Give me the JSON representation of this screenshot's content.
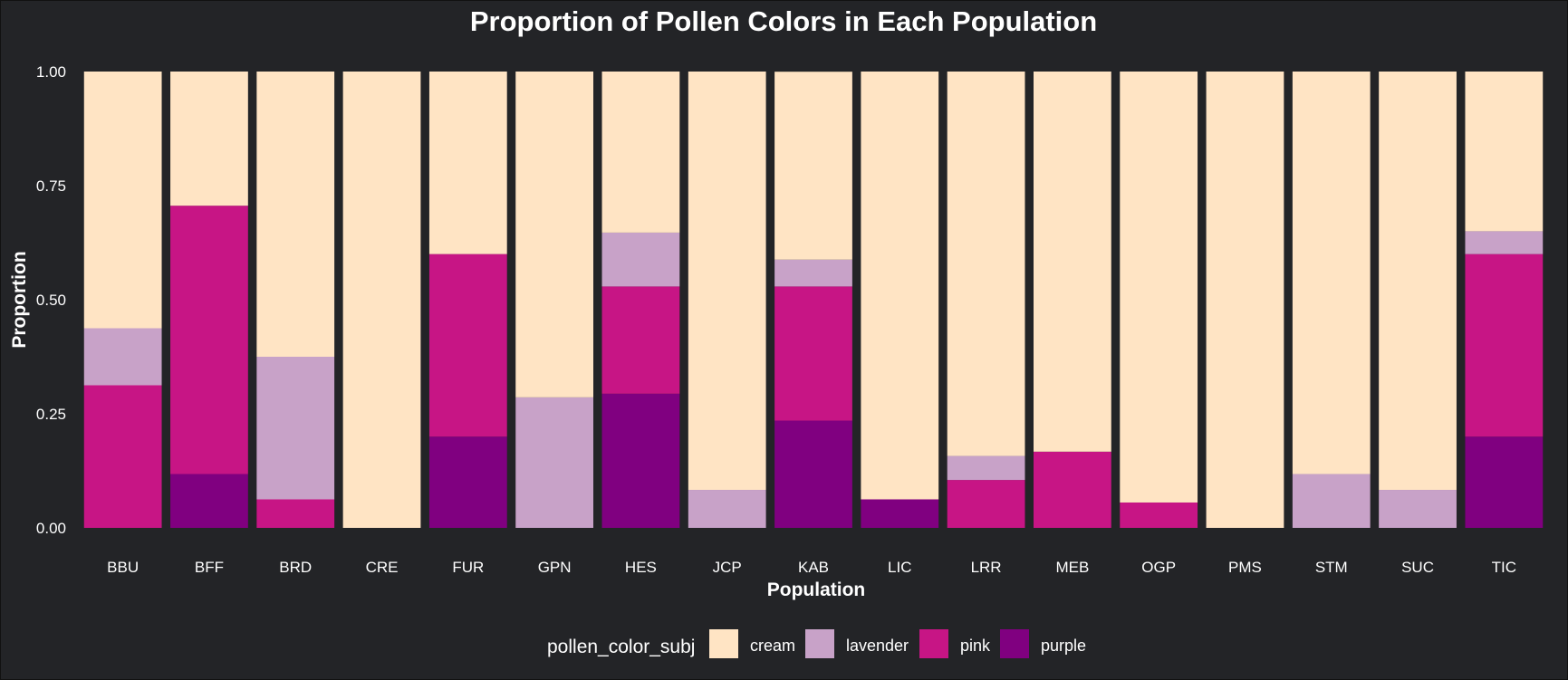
{
  "chart_data": {
    "type": "bar",
    "stacked": true,
    "title": "Proportion of Pollen Colors in Each Population",
    "xlabel": "Population",
    "ylabel": "Proportion",
    "ylim": [
      0,
      1
    ],
    "yticks": [
      "0.00",
      "0.25",
      "0.50",
      "0.75",
      "1.00"
    ],
    "grid": false,
    "legend_position": "bottom",
    "legend_title": "pollen_color_subj",
    "categories": [
      "BBU",
      "BFF",
      "BRD",
      "CRE",
      "FUR",
      "GPN",
      "HES",
      "JCP",
      "KAB",
      "LIC",
      "LRR",
      "MEB",
      "OGP",
      "PMS",
      "STM",
      "SUC",
      "TIC"
    ],
    "series": [
      {
        "name": "purple",
        "color": "#800080",
        "values": [
          0,
          0.118,
          0,
          0,
          0.2,
          0,
          0.294,
          0,
          0.235,
          0.0625,
          0,
          0,
          0,
          0,
          0,
          0,
          0.2
        ]
      },
      {
        "name": "pink",
        "color": "#C71585",
        "values": [
          0.3125,
          0.588,
          0.0625,
          0,
          0.4,
          0,
          0.235,
          0,
          0.294,
          0,
          0.105,
          0.167,
          0.0556,
          0,
          0,
          0,
          0.4
        ]
      },
      {
        "name": "lavender",
        "color": "#C8A2C8",
        "values": [
          0.125,
          0,
          0.3125,
          0,
          0,
          0.286,
          0.118,
          0.0833,
          0.0588,
          0,
          0.0526,
          0,
          0,
          0,
          0.118,
          0.0833,
          0.05
        ]
      },
      {
        "name": "cream",
        "color": "#FFE4C4",
        "values": [
          0.5625,
          0.294,
          0.625,
          1,
          0.4,
          0.714,
          0.353,
          0.9167,
          0.4118,
          0.9375,
          0.8424,
          0.833,
          0.9444,
          1,
          0.882,
          0.9167,
          0.35
        ]
      }
    ],
    "legend_order": [
      "cream",
      "lavender",
      "pink",
      "purple"
    ]
  }
}
